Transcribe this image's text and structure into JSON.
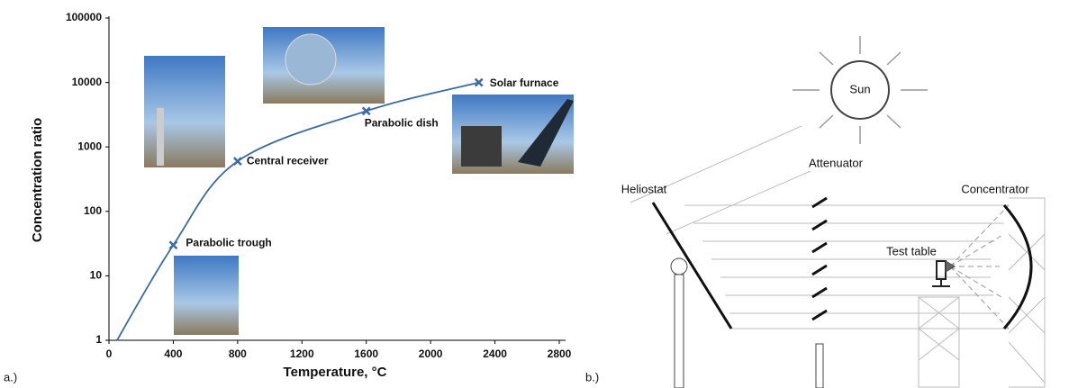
{
  "chart_data": {
    "type": "line",
    "x_label": "Temperature, °C",
    "y_label": "Concentration ratio",
    "x": [
      50,
      400,
      800,
      1600,
      2300
    ],
    "series": [
      {
        "color": "#3d6aa0",
        "values": [
          1,
          30,
          600,
          3600,
          10000
        ]
      }
    ],
    "point_labels": [
      null,
      "Parabolic trough",
      "Central receiver",
      "Parabolic dish",
      "Solar furnace"
    ],
    "xlim": [
      0,
      2800
    ],
    "xticks": [
      0,
      400,
      800,
      1200,
      1600,
      2000,
      2400,
      2800
    ],
    "ylim": [
      1,
      100000
    ],
    "yticks": [
      1,
      10,
      100,
      1000,
      10000,
      100000
    ],
    "log_y": true
  },
  "panels": [
    "a.)",
    "b.)"
  ],
  "diagram": {
    "sun": "Sun",
    "attenuator": "Attenuator",
    "heliostat": "Heliostat",
    "concentrator": "Concentrator",
    "test_table": "Test table"
  }
}
